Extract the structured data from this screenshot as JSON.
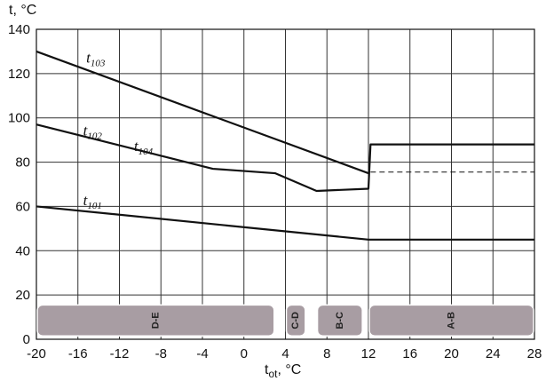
{
  "chart_data": {
    "type": "line",
    "ylabel": "t, °C",
    "xlabel": {
      "main": "t",
      "sub": "ot",
      "unit": ", °C"
    },
    "xlim": [
      -20,
      28
    ],
    "ylim": [
      0,
      140
    ],
    "x_ticks": [
      -20,
      -16,
      -12,
      -8,
      -4,
      0,
      4,
      8,
      12,
      16,
      20,
      24,
      28
    ],
    "y_ticks": [
      0,
      20,
      40,
      60,
      80,
      100,
      120,
      140
    ],
    "grid": true,
    "series": [
      {
        "name": "t103",
        "label_main": "t",
        "label_sub": "103",
        "label_pos": [
          -15.2,
          125
        ],
        "points": [
          [
            -20,
            130
          ],
          [
            12,
            75
          ]
        ]
      },
      {
        "name": "t102",
        "label_main": "t",
        "label_sub": "102",
        "label_pos": [
          -15.5,
          92
        ],
        "points": [
          [
            -20,
            97
          ],
          [
            -3,
            77
          ],
          [
            3,
            75
          ],
          [
            7,
            67
          ],
          [
            12,
            68
          ],
          [
            12.2,
            88
          ],
          [
            28,
            88
          ]
        ]
      },
      {
        "name": "t104",
        "label_main": "t",
        "label_sub": "104",
        "label_pos": [
          -10.6,
          85
        ],
        "points": [
          [
            12.2,
            75.5
          ],
          [
            28,
            75.5
          ]
        ],
        "dashed": true
      },
      {
        "name": "t101",
        "label_main": "t",
        "label_sub": "101",
        "label_pos": [
          -15.5,
          60.5
        ],
        "points": [
          [
            -20,
            60
          ],
          [
            12,
            45
          ],
          [
            28,
            45
          ]
        ]
      }
    ],
    "zones": [
      {
        "label": "D-E",
        "from": -20,
        "to": 3
      },
      {
        "label": "C-D",
        "from": 4,
        "to": 6
      },
      {
        "label": "B-C",
        "from": 7,
        "to": 11.5
      },
      {
        "label": "A-B",
        "from": 12,
        "to": 28
      }
    ],
    "colors": {
      "line": "#111111",
      "grid": "#333333",
      "zone_fill": "#a89da3",
      "zone_border": "#ffffff"
    }
  }
}
